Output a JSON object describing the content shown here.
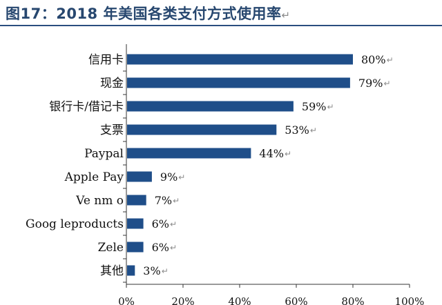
{
  "header": {
    "title": "图17：2018 年美国各类支付方式使用率",
    "return_mark": "↵"
  },
  "chart_data": {
    "type": "bar",
    "orientation": "horizontal",
    "title": "图17：2018 年美国各类支付方式使用率",
    "categories": [
      "信用卡",
      "现金",
      "银行卡/借记卡",
      "支票",
      "Paypal",
      "Apple Pay",
      "Venmo",
      "Googleproducts",
      "Zele",
      "其他"
    ],
    "category_labels": [
      "信用卡",
      "现金",
      "银行卡/借记卡",
      "支票",
      "Paypal",
      "Apple Pay",
      "Ve nm o",
      "Goog leproducts",
      "Zele",
      "其他"
    ],
    "values": [
      80,
      79,
      59,
      53,
      44,
      9,
      7,
      6,
      6,
      3
    ],
    "value_labels": [
      "80%",
      "79%",
      "59%",
      "53%",
      "44%",
      "9%",
      "7%",
      "6%",
      "6%",
      "3%"
    ],
    "unit": "%",
    "xlim": [
      0,
      100
    ],
    "xticks": [
      0,
      20,
      40,
      60,
      80,
      100
    ],
    "xtick_labels": [
      "0%",
      "20%",
      "40%",
      "60%",
      "80%",
      "100%"
    ],
    "xlabel": "",
    "ylabel": "",
    "grid": false,
    "legend": "none",
    "bar_color": "#1f4e89"
  }
}
